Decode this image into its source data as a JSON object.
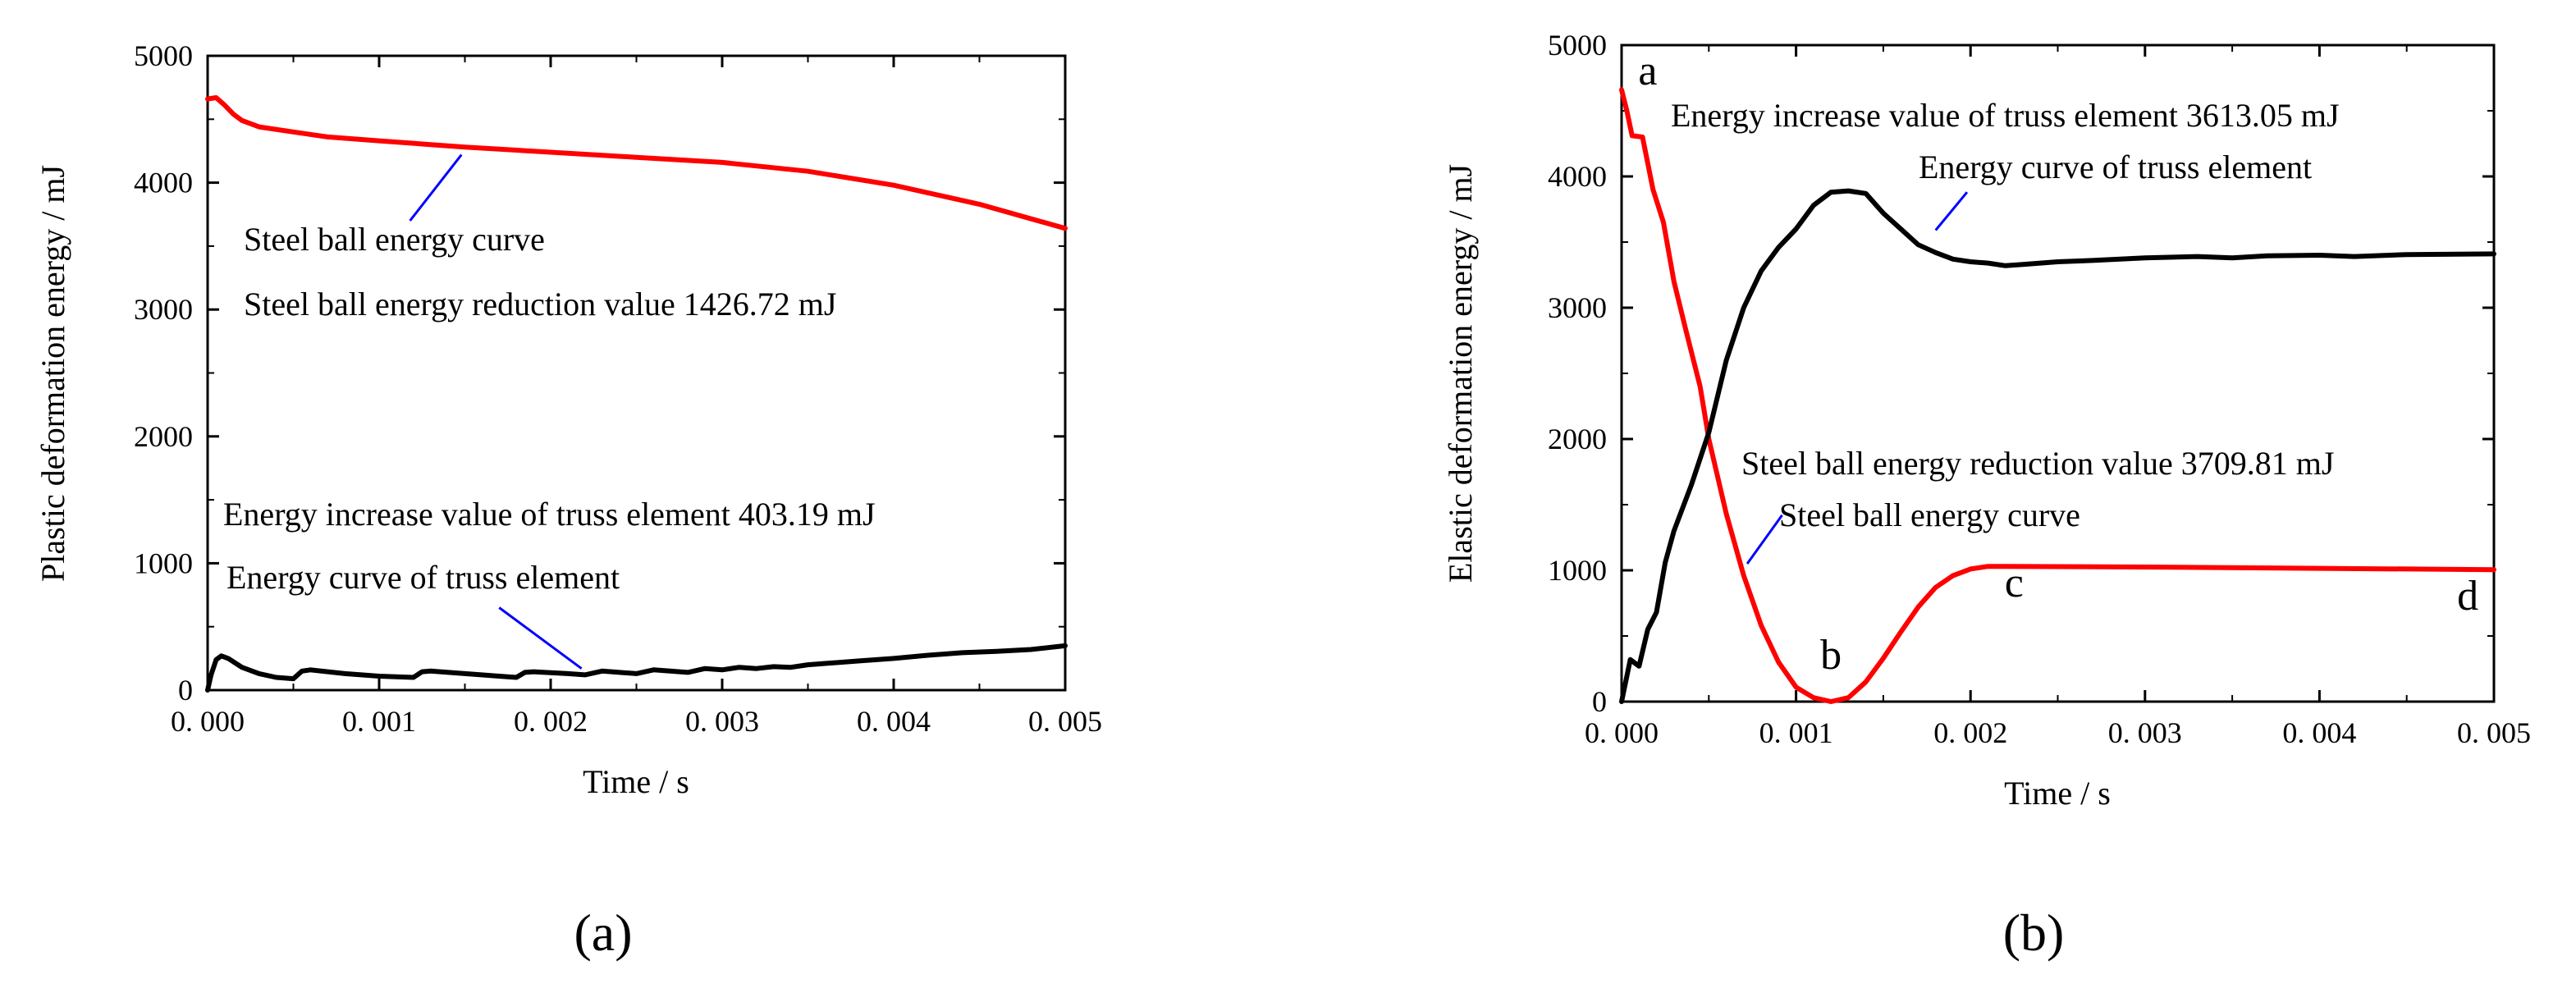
{
  "chart_data": [
    {
      "type": "line",
      "panel_label": "(a)",
      "xlabel": "Time / s",
      "ylabel": "Plastic deformation energy / mJ",
      "xlim": [
        0,
        0.005
      ],
      "ylim": [
        0,
        5000
      ],
      "x_ticks": [
        0,
        0.001,
        0.002,
        0.003,
        0.004,
        0.005
      ],
      "x_tick_labels": [
        "0. 000",
        "0. 001",
        "0. 002",
        "0. 003",
        "0. 004",
        "0. 005"
      ],
      "y_ticks": [
        0,
        1000,
        2000,
        3000,
        4000,
        5000
      ],
      "y_tick_labels": [
        "0",
        "1000",
        "2000",
        "3000",
        "4000",
        "5000"
      ],
      "series": [
        {
          "name": "Steel ball energy curve",
          "color": "#ff0000",
          "points": [
            [
              0,
              4660
            ],
            [
              5e-05,
              4670
            ],
            [
              0.0001,
              4610
            ],
            [
              0.00015,
              4540
            ],
            [
              0.0002,
              4490
            ],
            [
              0.0003,
              4440
            ],
            [
              0.0005,
              4400
            ],
            [
              0.0007,
              4360
            ],
            [
              0.001,
              4330
            ],
            [
              0.0013,
              4300
            ],
            [
              0.0015,
              4280
            ],
            [
              0.002,
              4240
            ],
            [
              0.0025,
              4200
            ],
            [
              0.003,
              4160
            ],
            [
              0.0035,
              4090
            ],
            [
              0.004,
              3980
            ],
            [
              0.0045,
              3830
            ],
            [
              0.005,
              3640
            ]
          ]
        },
        {
          "name": "Energy curve of truss element",
          "color": "#000000",
          "points": [
            [
              0,
              0
            ],
            [
              2e-05,
              120
            ],
            [
              5e-05,
              240
            ],
            [
              8e-05,
              270
            ],
            [
              0.00012,
              250
            ],
            [
              0.0002,
              180
            ],
            [
              0.0003,
              130
            ],
            [
              0.0004,
              100
            ],
            [
              0.0005,
              90
            ],
            [
              0.00055,
              150
            ],
            [
              0.0006,
              160
            ],
            [
              0.0008,
              130
            ],
            [
              0.001,
              110
            ],
            [
              0.0012,
              100
            ],
            [
              0.00125,
              145
            ],
            [
              0.0013,
              150
            ],
            [
              0.0015,
              130
            ],
            [
              0.0017,
              110
            ],
            [
              0.0018,
              100
            ],
            [
              0.00185,
              140
            ],
            [
              0.0019,
              145
            ],
            [
              0.0021,
              130
            ],
            [
              0.0022,
              120
            ],
            [
              0.0023,
              150
            ],
            [
              0.0025,
              130
            ],
            [
              0.0026,
              160
            ],
            [
              0.0028,
              140
            ],
            [
              0.0029,
              170
            ],
            [
              0.003,
              160
            ],
            [
              0.0031,
              180
            ],
            [
              0.0032,
              170
            ],
            [
              0.0033,
              185
            ],
            [
              0.0034,
              180
            ],
            [
              0.0035,
              200
            ],
            [
              0.0036,
              210
            ],
            [
              0.0038,
              230
            ],
            [
              0.004,
              250
            ],
            [
              0.0042,
              275
            ],
            [
              0.0044,
              295
            ],
            [
              0.0046,
              305
            ],
            [
              0.0048,
              320
            ],
            [
              0.005,
              350
            ]
          ]
        }
      ],
      "annotations": [
        {
          "text": "Steel ball energy curve",
          "leader_from": [
            0.00118,
            3700
          ],
          "leader_to": [
            0.00148,
            4220
          ]
        },
        {
          "text": "Steel ball energy reduction value 1426.72 mJ"
        },
        {
          "text": "Energy increase value of truss element 403.19 mJ"
        },
        {
          "text": "Energy curve of truss element",
          "leader_from": [
            0.0017,
            650
          ],
          "leader_to": [
            0.00218,
            170
          ]
        }
      ]
    },
    {
      "type": "line",
      "panel_label": "(b)",
      "xlabel": "Time / s",
      "ylabel": "Elastic deformation energy / mJ",
      "xlim": [
        0,
        0.005
      ],
      "ylim": [
        0,
        5000
      ],
      "x_ticks": [
        0,
        0.001,
        0.002,
        0.003,
        0.004,
        0.005
      ],
      "x_tick_labels": [
        "0. 000",
        "0. 001",
        "0. 002",
        "0. 003",
        "0. 004",
        "0. 005"
      ],
      "y_ticks": [
        0,
        1000,
        2000,
        3000,
        4000,
        5000
      ],
      "y_tick_labels": [
        "0",
        "1000",
        "2000",
        "3000",
        "4000",
        "5000"
      ],
      "series": [
        {
          "name": "Steel ball energy curve",
          "color": "#ff0000",
          "points": [
            [
              0,
              4660
            ],
            [
              3e-05,
              4500
            ],
            [
              6e-05,
              4310
            ],
            [
              0.00012,
              4300
            ],
            [
              0.00018,
              3900
            ],
            [
              0.00024,
              3650
            ],
            [
              0.0003,
              3200
            ],
            [
              0.00037,
              2820
            ],
            [
              0.00045,
              2400
            ],
            [
              0.0005,
              2000
            ],
            [
              0.0006,
              1430
            ],
            [
              0.0007,
              960
            ],
            [
              0.0008,
              580
            ],
            [
              0.0009,
              300
            ],
            [
              0.001,
              110
            ],
            [
              0.0011,
              30
            ],
            [
              0.0012,
              0
            ],
            [
              0.0013,
              30
            ],
            [
              0.0014,
              150
            ],
            [
              0.0015,
              330
            ],
            [
              0.0016,
              530
            ],
            [
              0.0017,
              720
            ],
            [
              0.0018,
              870
            ],
            [
              0.0019,
              960
            ],
            [
              0.002,
              1010
            ],
            [
              0.0021,
              1030
            ],
            [
              0.0022,
              1030
            ],
            [
              0.003,
              1025
            ],
            [
              0.004,
              1015
            ],
            [
              0.005,
              1005
            ]
          ]
        },
        {
          "name": "Energy curve of truss element",
          "color": "#000000",
          "points": [
            [
              0,
              0
            ],
            [
              5e-05,
              320
            ],
            [
              0.0001,
              270
            ],
            [
              0.00015,
              550
            ],
            [
              0.0002,
              680
            ],
            [
              0.00025,
              1060
            ],
            [
              0.0003,
              1300
            ],
            [
              0.0004,
              1650
            ],
            [
              0.0005,
              2050
            ],
            [
              0.0006,
              2600
            ],
            [
              0.0007,
              3000
            ],
            [
              0.0008,
              3280
            ],
            [
              0.0009,
              3460
            ],
            [
              0.001,
              3600
            ],
            [
              0.0011,
              3780
            ],
            [
              0.0012,
              3880
            ],
            [
              0.0013,
              3890
            ],
            [
              0.0014,
              3870
            ],
            [
              0.0015,
              3720
            ],
            [
              0.0016,
              3600
            ],
            [
              0.0017,
              3480
            ],
            [
              0.0018,
              3420
            ],
            [
              0.0019,
              3370
            ],
            [
              0.002,
              3350
            ],
            [
              0.0021,
              3340
            ],
            [
              0.0022,
              3320
            ],
            [
              0.0023,
              3330
            ],
            [
              0.0025,
              3350
            ],
            [
              0.0027,
              3360
            ],
            [
              0.003,
              3380
            ],
            [
              0.0033,
              3390
            ],
            [
              0.0035,
              3380
            ],
            [
              0.0037,
              3395
            ],
            [
              0.004,
              3400
            ],
            [
              0.0042,
              3390
            ],
            [
              0.0045,
              3405
            ],
            [
              0.005,
              3410
            ]
          ]
        }
      ],
      "point_labels": [
        {
          "text": "a",
          "x": 0.00015,
          "y": 4700
        },
        {
          "text": "b",
          "x": 0.0012,
          "y": 250
        },
        {
          "text": "c",
          "x": 0.00225,
          "y": 800
        },
        {
          "text": "d",
          "x": 0.00485,
          "y": 700
        }
      ],
      "annotations": [
        {
          "text": "Energy increase value of truss element 3613.05 mJ"
        },
        {
          "text": "Energy curve of truss element",
          "leader_from": [
            0.0018,
            3590
          ],
          "leader_to": [
            0.00198,
            3880
          ]
        },
        {
          "text": "Steel ball energy reduction value 3709.81 mJ"
        },
        {
          "text": "Steel ball energy curve",
          "leader_from": [
            0.00072,
            1050
          ],
          "leader_to": [
            0.00092,
            1420
          ]
        }
      ]
    }
  ]
}
